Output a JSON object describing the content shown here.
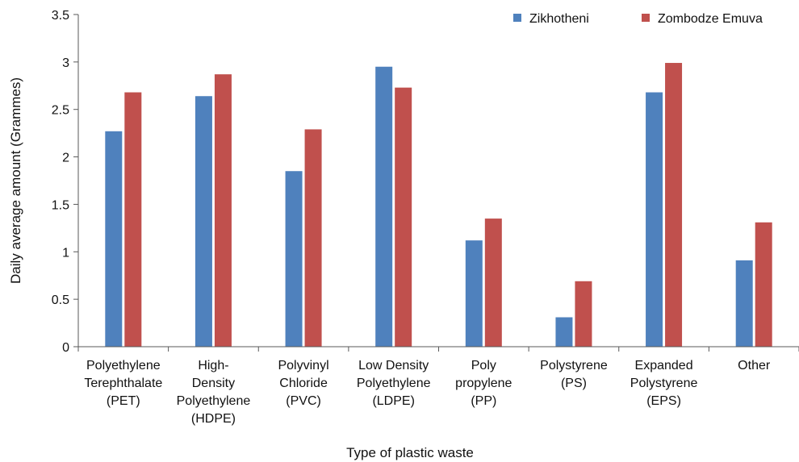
{
  "chart_data": {
    "type": "bar",
    "categories": [
      [
        "Polyethylene",
        "Terephthalate",
        "(PET)"
      ],
      [
        "High-",
        "Density",
        "Polyethylene",
        "(HDPE)"
      ],
      [
        "Polyvinyl",
        "Chloride",
        "(PVC)"
      ],
      [
        "Low Density",
        "Polyethylene",
        "(LDPE)"
      ],
      [
        "Poly",
        "propylene",
        "(PP)"
      ],
      [
        "Polystyrene",
        "(PS)"
      ],
      [
        "Expanded",
        "Polystyrene",
        "(EPS)"
      ],
      [
        "Other"
      ]
    ],
    "series": [
      {
        "name": "Zikhotheni",
        "color": "#4f81bd",
        "values": [
          2.27,
          2.64,
          1.85,
          2.95,
          1.12,
          0.31,
          2.68,
          0.91
        ]
      },
      {
        "name": "Zombodze Emuva",
        "color": "#c0504d",
        "values": [
          2.68,
          2.87,
          2.29,
          2.73,
          1.35,
          0.69,
          2.99,
          1.31
        ]
      }
    ],
    "xlabel": "Type of plastic waste",
    "ylabel": "Daily average amount (Grammes)",
    "ylim": [
      0,
      3.5
    ],
    "yticks": [
      "0",
      "0.5",
      "1",
      "1.5",
      "2",
      "2.5",
      "3",
      "3.5"
    ],
    "grid": false,
    "legend_position": "top-right"
  }
}
